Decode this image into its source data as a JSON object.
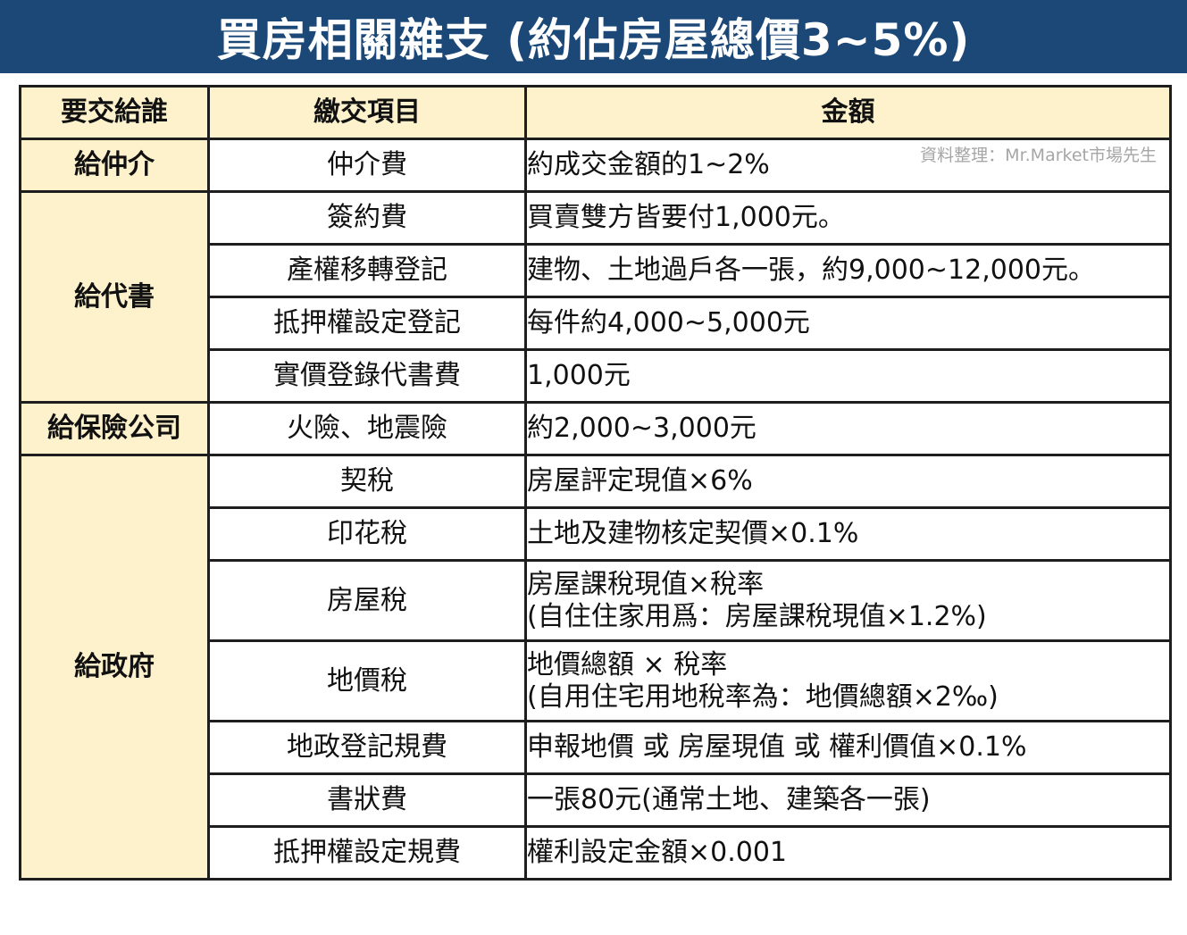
{
  "title": "買房相關雜支 (約佔房屋總價3~5%)",
  "source_note": "資料整理：Mr.Market市場先生",
  "table": {
    "headers": [
      "要交給誰",
      "繳交項目",
      "金額"
    ],
    "groups": [
      {
        "payee": "給仲介",
        "rows": [
          {
            "item": "仲介費",
            "amount": [
              "約成交金額的1~2%"
            ]
          }
        ]
      },
      {
        "payee": "給代書",
        "rows": [
          {
            "item": "簽約費",
            "amount": [
              "買賣雙方皆要付1,000元。"
            ]
          },
          {
            "item": "產權移轉登記",
            "amount": [
              "建物、土地過戶各一張，約9,000~12,000元。"
            ]
          },
          {
            "item": "抵押權設定登記",
            "amount": [
              "每件約4,000~5,000元"
            ]
          },
          {
            "item": "實價登錄代書費",
            "amount": [
              "1,000元"
            ]
          }
        ]
      },
      {
        "payee": "給保險公司",
        "rows": [
          {
            "item": "火險、地震險",
            "amount": [
              "約2,000~3,000元"
            ]
          }
        ]
      },
      {
        "payee": "給政府",
        "rows": [
          {
            "item": "契稅",
            "amount": [
              "房屋評定現值×6%"
            ]
          },
          {
            "item": "印花稅",
            "amount": [
              "土地及建物核定契價×0.1%"
            ]
          },
          {
            "item": "房屋稅",
            "amount": [
              "房屋課稅現值×稅率",
              "(自住住家用爲：房屋課稅現值×1.2%)"
            ]
          },
          {
            "item": "地價稅",
            "amount": [
              "地價總額 × 稅率",
              "(自用住宅用地稅率為：地價總額×2‰)"
            ]
          },
          {
            "item": "地政登記規費",
            "amount": [
              "申報地價 或 房屋現值 或 權利價值×0.1%"
            ]
          },
          {
            "item": "書狀費",
            "amount": [
              "一張80元(通常土地、建築各一張)"
            ]
          },
          {
            "item": "抵押權設定規費",
            "amount": [
              "權利設定金額×0.001"
            ]
          }
        ]
      }
    ]
  }
}
